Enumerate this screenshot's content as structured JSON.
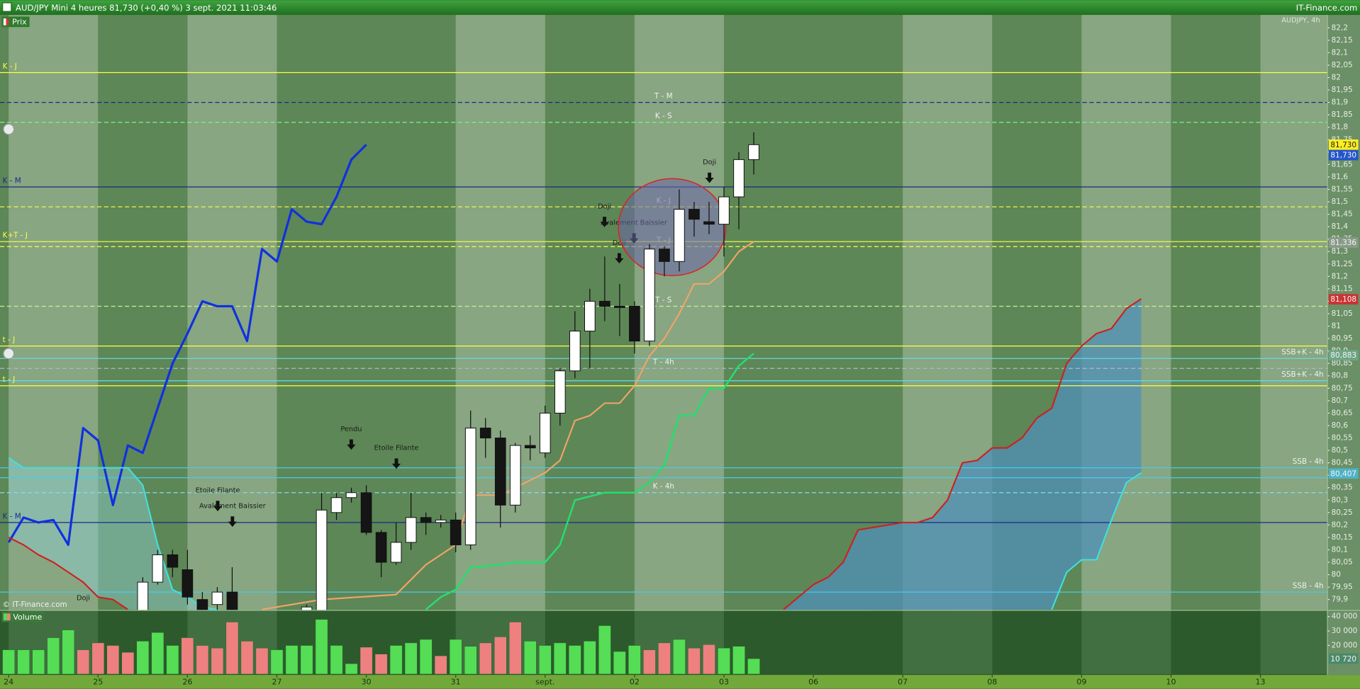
{
  "chart_data": [
    {
      "type": "candlestick",
      "title": "AUD/JPY Mini 4 heures 81,730 (+0,40 %) 3 sept. 2021 11:03:46",
      "source": "IT-Finance.com",
      "subtitle": "AUDJPY, 4h",
      "panel_label": "Prix",
      "copyright": "© IT-Finance.com",
      "xlim": [
        -0.58,
        88.47
      ],
      "ylim": [
        79.858,
        82.252
      ],
      "yticks": [
        {
          "value": 82.2,
          "label": "82,2"
        },
        {
          "value": 82.15,
          "label": "82,15"
        },
        {
          "value": 82.1,
          "label": "82,1"
        },
        {
          "value": 82.05,
          "label": "82,05"
        },
        82,
        {
          "value": 81.95,
          "label": "81,95"
        },
        {
          "value": 81.9,
          "label": "81,9"
        },
        {
          "value": 81.85,
          "label": "81,85"
        },
        {
          "value": 81.8,
          "label": "81,8"
        },
        {
          "value": 81.75,
          "label": "81,75"
        },
        {
          "value": 81.7,
          "label": "81,7"
        },
        {
          "value": 81.65,
          "label": "81,65"
        },
        {
          "value": 81.6,
          "label": "81,6"
        },
        {
          "value": 81.55,
          "label": "81,55"
        },
        {
          "value": 81.5,
          "label": "81,5"
        },
        {
          "value": 81.45,
          "label": "81,45"
        },
        {
          "value": 81.4,
          "label": "81,4"
        },
        {
          "value": 81.35,
          "label": "81,35"
        },
        {
          "value": 81.3,
          "label": "81,3"
        },
        {
          "value": 81.25,
          "label": "81,25"
        },
        {
          "value": 81.2,
          "label": "81,2"
        },
        {
          "value": 81.15,
          "label": "81,15"
        },
        {
          "value": 81.1,
          "label": "81,1"
        },
        {
          "value": 81.05,
          "label": "81,05"
        },
        81,
        {
          "value": 80.95,
          "label": "80,95"
        },
        {
          "value": 80.9,
          "label": "80,9"
        },
        {
          "value": 80.85,
          "label": "80,85"
        },
        {
          "value": 80.8,
          "label": "80,8"
        },
        {
          "value": 80.75,
          "label": "80,75"
        },
        {
          "value": 80.7,
          "label": "80,7"
        },
        {
          "value": 80.65,
          "label": "80,65"
        },
        {
          "value": 80.6,
          "label": "80,6"
        },
        {
          "value": 80.55,
          "label": "80,55"
        },
        {
          "value": 80.5,
          "label": "80,5"
        },
        {
          "value": 80.45,
          "label": "80,45"
        },
        {
          "value": 80.4,
          "label": "80,4"
        },
        {
          "value": 80.35,
          "label": "80,35"
        },
        {
          "value": 80.3,
          "label": "80,3"
        },
        {
          "value": 80.25,
          "label": "80,25"
        },
        {
          "value": 80.2,
          "label": "80,2"
        },
        {
          "value": 80.15,
          "label": "80,15"
        },
        {
          "value": 80.1,
          "label": "80,1"
        },
        {
          "value": 80.05,
          "label": "80,05"
        },
        80,
        {
          "value": 79.95,
          "label": "79,95"
        },
        {
          "value": 79.9,
          "label": "79,9"
        }
      ],
      "up_color": "#ffffff",
      "down_color": "#151515",
      "candles": {
        "x": [
          9,
          10,
          11,
          12,
          13,
          14,
          15,
          20,
          21,
          22,
          23,
          24,
          25,
          26,
          27,
          28,
          29,
          30,
          31,
          32,
          33,
          34,
          35,
          36,
          37,
          38,
          39,
          40,
          41,
          42,
          43,
          44,
          45,
          46,
          47,
          48,
          49,
          50
        ],
        "open": [
          79.8,
          79.97,
          80.08,
          80.02,
          79.9,
          79.88,
          79.93,
          79.84,
          79.8,
          80.25,
          80.31,
          80.33,
          80.17,
          80.05,
          80.13,
          80.23,
          80.21,
          80.22,
          80.12,
          80.59,
          80.55,
          80.28,
          80.52,
          80.49,
          80.65,
          80.82,
          80.98,
          81.1,
          81.08,
          81.08,
          80.94,
          81.31,
          81.26,
          81.47,
          81.42,
          81.41,
          81.52,
          81.67
        ],
        "high": [
          79.99,
          80.1,
          80.1,
          80.1,
          79.93,
          79.95,
          80.03,
          79.88,
          80.33,
          80.33,
          80.35,
          80.36,
          80.18,
          80.21,
          80.33,
          80.25,
          80.24,
          80.25,
          80.66,
          80.63,
          80.58,
          80.53,
          80.56,
          80.68,
          80.83,
          81.06,
          81.15,
          81.28,
          81.17,
          81.1,
          81.33,
          81.32,
          81.55,
          81.5,
          81.5,
          81.56,
          81.7,
          81.78
        ],
        "low": [
          79.78,
          79.96,
          79.99,
          79.88,
          79.8,
          79.84,
          79.78,
          79.8,
          79.78,
          80.22,
          80.29,
          80.16,
          79.99,
          80.04,
          80.1,
          80.16,
          80.19,
          80.09,
          80.1,
          80.47,
          80.19,
          80.25,
          80.46,
          80.47,
          80.6,
          80.79,
          80.83,
          81.02,
          80.96,
          80.89,
          80.92,
          81.2,
          81.22,
          81.36,
          81.37,
          81.28,
          81.39,
          81.61
        ],
        "close": [
          79.97,
          80.08,
          80.03,
          79.91,
          79.85,
          79.93,
          79.82,
          79.87,
          80.26,
          80.31,
          80.33,
          80.17,
          80.05,
          80.13,
          80.23,
          80.21,
          80.22,
          80.12,
          80.59,
          80.55,
          80.28,
          80.52,
          80.51,
          80.65,
          80.82,
          80.98,
          81.1,
          81.08,
          81.08,
          80.94,
          81.31,
          81.26,
          81.47,
          81.43,
          81.41,
          81.52,
          81.67,
          81.73
        ]
      },
      "lines": [
        {
          "color": "#f4a468",
          "x": [
            17,
            21,
            26,
            28,
            30,
            31,
            33,
            34,
            35,
            36,
            37,
            38,
            39,
            40,
            41,
            42,
            43,
            44,
            45,
            46,
            47,
            48,
            49,
            50
          ],
          "values": [
            79.86,
            79.9,
            79.92,
            80.04,
            80.12,
            80.32,
            80.32,
            80.35,
            80.38,
            80.41,
            80.46,
            80.62,
            80.64,
            80.69,
            80.69,
            80.76,
            80.88,
            80.95,
            81.05,
            81.17,
            81.17,
            81.22,
            81.3,
            81.34
          ]
        },
        {
          "color": "#22e070",
          "x": [
            28,
            29,
            30,
            31,
            33,
            34,
            36,
            37,
            38,
            40,
            42,
            43,
            44,
            45,
            46,
            47,
            48,
            49,
            50
          ],
          "values": [
            79.86,
            79.91,
            79.94,
            80.03,
            80.04,
            80.05,
            80.05,
            80.12,
            80.3,
            80.33,
            80.33,
            80.37,
            80.44,
            80.64,
            80.64,
            80.75,
            80.75,
            80.84,
            80.89
          ]
        },
        {
          "color": "#1030e0",
          "x": [
            0,
            1,
            2,
            3,
            4,
            5,
            6,
            7,
            8,
            9,
            10,
            11,
            12,
            13,
            14,
            15,
            16,
            17,
            18,
            19,
            20,
            21,
            22,
            23,
            24
          ],
          "values": [
            80.13,
            80.23,
            80.21,
            80.22,
            80.12,
            80.59,
            80.54,
            80.28,
            80.52,
            80.49,
            80.67,
            80.85,
            80.97,
            81.1,
            81.08,
            81.08,
            80.94,
            81.31,
            81.26,
            81.47,
            81.42,
            81.41,
            81.52,
            81.67,
            81.73
          ]
        },
        {
          "color": "#d01e1e",
          "x": [
            0,
            1,
            2,
            3,
            4,
            5,
            6,
            7,
            8,
            9,
            52,
            53,
            54,
            55,
            56,
            57,
            58,
            59,
            60,
            61,
            62,
            63,
            64,
            65,
            66,
            67,
            68,
            69,
            70,
            71,
            72,
            73,
            74,
            75,
            76
          ],
          "values": [
            80.15,
            80.12,
            80.08,
            80.05,
            80.01,
            79.97,
            79.91,
            79.9,
            79.86,
            null,
            79.86,
            79.91,
            79.96,
            79.99,
            80.05,
            80.18,
            80.19,
            80.2,
            80.21,
            80.21,
            80.23,
            80.3,
            80.45,
            80.46,
            80.51,
            80.51,
            80.55,
            80.63,
            80.67,
            80.85,
            80.92,
            80.97,
            80.99,
            81.07,
            81.11
          ]
        },
        {
          "color": "#40e0e0",
          "x": [
            0,
            1,
            2,
            3,
            4,
            5,
            6,
            7,
            8,
            9,
            10,
            11,
            12,
            13,
            14,
            15,
            70,
            71,
            72,
            73,
            74,
            75,
            76
          ],
          "values": [
            80.47,
            80.43,
            80.43,
            80.43,
            80.43,
            80.43,
            80.43,
            80.43,
            80.43,
            80.36,
            80.12,
            79.94,
            79.91,
            79.87,
            79.86,
            null,
            79.86,
            80.01,
            80.06,
            80.06,
            80.22,
            80.37,
            80.41
          ]
        }
      ],
      "cloud_colors": [
        "#4f8fba",
        "#8fd0d4"
      ],
      "levels": [
        {
          "value": 82.02,
          "color": "#ffff44",
          "style": "solid",
          "label": "K - J",
          "label_pos": "left"
        },
        {
          "value": 81.9,
          "color": "#1a2a8a",
          "style": "dash",
          "label": "T - M",
          "label_pos": "center"
        },
        {
          "value": 81.82,
          "color": "#88ee88",
          "style": "dash",
          "label": "K - S",
          "label_pos": "center"
        },
        {
          "value": 81.56,
          "color": "#1a2a8a",
          "style": "solid",
          "label": "K - M",
          "label_pos": "left"
        },
        {
          "value": 81.48,
          "color": "#ffff44",
          "style": "dash",
          "label": "K - J",
          "label_pos": "center"
        },
        {
          "value": 81.34,
          "color": "#ffff44",
          "style": "solid",
          "label": "K+T - J",
          "label_pos": "left"
        },
        {
          "value": 81.32,
          "color": "#ffff44",
          "style": "dash",
          "label": "T - J",
          "label_pos": "center"
        },
        {
          "value": 81.08,
          "color": "#ccee99",
          "style": "dash",
          "label": "T - S",
          "label_pos": "center"
        },
        {
          "value": 80.92,
          "color": "#ffff44",
          "style": "solid",
          "label": "t - J",
          "label_pos": "left"
        },
        {
          "value": 80.87,
          "color": "#66ddee",
          "style": "solid",
          "label": "SSB+K - 4h",
          "label_pos": "right"
        },
        {
          "value": 80.83,
          "color": "#aabbcc",
          "style": "dash",
          "label": "T - 4h",
          "label_pos": "center"
        },
        {
          "value": 80.78,
          "color": "#66ddee",
          "style": "solid",
          "label": "SSB+K - 4h",
          "label_pos": "right"
        },
        {
          "value": 80.76,
          "color": "#ffff44",
          "style": "solid",
          "label": "t - J",
          "label_pos": "left"
        },
        {
          "value": 80.43,
          "color": "#44ccee",
          "style": "solid",
          "label": "SSB - 4h",
          "label_pos": "right"
        },
        {
          "value": 80.39,
          "color": "#44ccee",
          "style": "solid"
        },
        {
          "value": 80.33,
          "color": "#88ddee",
          "style": "dash",
          "label": "K - 4h",
          "label_pos": "center"
        },
        {
          "value": 80.21,
          "color": "#1a2a8a",
          "style": "solid",
          "label": "K - M",
          "label_pos": "left"
        },
        {
          "value": 79.93,
          "color": "#44ccee",
          "style": "solid",
          "label": "SSB - 4h",
          "label_pos": "right"
        }
      ],
      "price_labels": [
        {
          "value": 81.73,
          "label": "81,730",
          "color": "#ffee22"
        },
        {
          "value": 81.73,
          "label": "81,730",
          "color": "#2255cc"
        },
        {
          "value": 81.336,
          "label": "81,336",
          "color": "#8a9a8a"
        },
        {
          "value": 81.108,
          "label": "81,108",
          "color": "#cc3333"
        },
        {
          "value": 80.883,
          "label": "80,883",
          "color": "#6fa585"
        },
        {
          "value": 80.407,
          "label": "80,407",
          "color": "#4fb3c6"
        }
      ],
      "annotations": [
        "Doji",
        "Doji",
        "Avalement Baissier",
        "Doji",
        "Pendu",
        "Etoile Filante",
        "Etoile Filante",
        "Avalement Baissier",
        "Doji"
      ]
    },
    {
      "type": "bar",
      "panel_label": "Volume",
      "xlim": [
        -0.58,
        88.47
      ],
      "ylim": [
        0,
        44000
      ],
      "yticks": [
        {
          "value": 40000,
          "label": "40 000"
        },
        {
          "value": 30000,
          "label": "30 000"
        },
        {
          "value": 20000,
          "label": "20 000"
        }
      ],
      "current_label": {
        "value": 10720,
        "label": "10 720",
        "color": "#4a8a6a"
      },
      "xticks": [
        {
          "value": 0,
          "label": "24"
        },
        {
          "value": 6,
          "label": "25"
        },
        {
          "value": 12,
          "label": "26"
        },
        {
          "value": 18,
          "label": "27"
        },
        {
          "value": 24,
          "label": "30"
        },
        {
          "value": 30,
          "label": "31"
        },
        {
          "value": 36,
          "label": "sept."
        },
        {
          "value": 42,
          "label": "02"
        },
        {
          "value": 48,
          "label": "03"
        },
        {
          "value": 54,
          "label": "06"
        },
        {
          "value": 60,
          "label": "07"
        },
        {
          "value": 66,
          "label": "08"
        },
        {
          "value": 72,
          "label": "09"
        },
        {
          "value": 78,
          "label": "10"
        },
        {
          "value": 84,
          "label": "13"
        }
      ],
      "x": [
        0,
        1,
        2,
        3,
        4,
        5,
        6,
        7,
        8,
        9,
        10,
        11,
        12,
        13,
        14,
        15,
        16,
        17,
        18,
        19,
        20,
        21,
        22,
        23,
        24,
        25,
        26,
        27,
        28,
        29,
        30,
        31,
        32,
        33,
        34,
        35,
        36,
        37,
        38,
        39,
        40,
        41,
        42,
        43,
        44,
        45,
        46,
        47,
        48,
        49,
        50
      ],
      "values": [
        16900,
        16900,
        16900,
        25300,
        30700,
        16900,
        21700,
        19900,
        15100,
        22900,
        28900,
        19900,
        25300,
        19900,
        18100,
        36200,
        22900,
        18100,
        16900,
        19900,
        19900,
        38000,
        19900,
        7200,
        18700,
        13900,
        19900,
        21700,
        24100,
        12700,
        24100,
        19300,
        21700,
        25900,
        36200,
        22900,
        19900,
        21700,
        19900,
        22900,
        33700,
        15700,
        19900,
        16900,
        21700,
        24100,
        18100,
        20500,
        18100,
        19300,
        10720
      ],
      "colors": [
        "#55dd55",
        "#55dd55",
        "#55dd55",
        "#55dd55",
        "#55dd55",
        "#ee8080",
        "#ee8080",
        "#ee8080",
        "#ee8080",
        "#55dd55",
        "#55dd55",
        "#55dd55",
        "#ee8080",
        "#ee8080",
        "#ee8080",
        "#ee8080",
        "#ee8080",
        "#ee8080",
        "#55dd55",
        "#55dd55",
        "#55dd55",
        "#55dd55",
        "#55dd55",
        "#55dd55",
        "#ee8080",
        "#ee8080",
        "#55dd55",
        "#55dd55",
        "#55dd55",
        "#ee8080",
        "#55dd55",
        "#55dd55",
        "#ee8080",
        "#ee8080",
        "#ee8080",
        "#55dd55",
        "#55dd55",
        "#55dd55",
        "#55dd55",
        "#55dd55",
        "#55dd55",
        "#55dd55",
        "#55dd55",
        "#ee8080",
        "#ee8080",
        "#55dd55",
        "#ee8080",
        "#ee8080",
        "#55dd55",
        "#55dd55",
        "#55dd55"
      ]
    }
  ]
}
